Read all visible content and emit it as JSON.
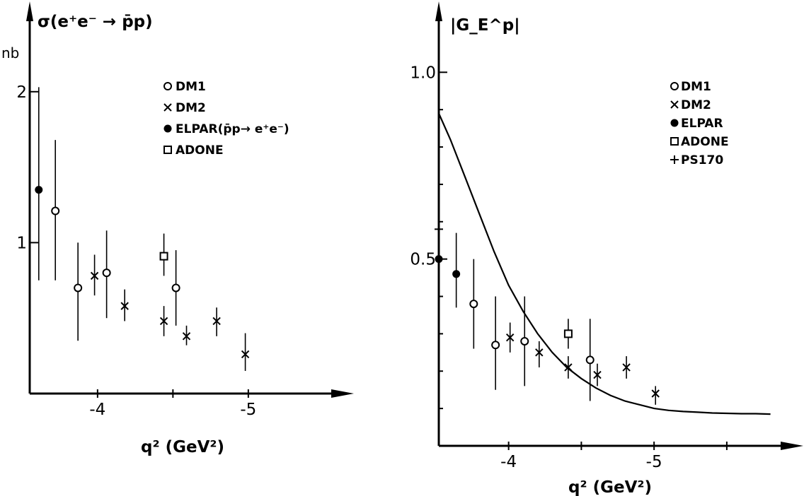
{
  "chart_data": [
    {
      "type": "scatter",
      "ylabel": "σ(e⁺e⁻ → p̄p)",
      "yunit": "nb",
      "xlabel": "q² (GeV²)",
      "xlim": [
        -3.55,
        -5.55
      ],
      "ylim": [
        0,
        2.5
      ],
      "xticks": [
        {
          "v": -4,
          "label": "-4"
        },
        {
          "v": -4.5,
          "label": ""
        },
        {
          "v": -5,
          "label": "-5"
        }
      ],
      "yticks": [
        {
          "v": 1,
          "label": "1"
        },
        {
          "v": 2,
          "label": "2"
        }
      ],
      "legend_position": "top-right",
      "series": [
        {
          "name": "DM1",
          "marker": "open-circle",
          "points": [
            {
              "x": -3.72,
              "y": 1.21,
              "lo": 0.75,
              "hi": 1.68
            },
            {
              "x": -3.87,
              "y": 0.7,
              "lo": 0.35,
              "hi": 1.0
            },
            {
              "x": -4.06,
              "y": 0.8,
              "lo": 0.5,
              "hi": 1.08
            },
            {
              "x": -4.52,
              "y": 0.7,
              "lo": 0.45,
              "hi": 0.95
            }
          ]
        },
        {
          "name": "DM2",
          "marker": "cross",
          "points": [
            {
              "x": -3.98,
              "y": 0.78,
              "lo": 0.65,
              "hi": 0.92
            },
            {
              "x": -4.18,
              "y": 0.58,
              "lo": 0.48,
              "hi": 0.69
            },
            {
              "x": -4.44,
              "y": 0.48,
              "lo": 0.38,
              "hi": 0.58
            },
            {
              "x": -4.59,
              "y": 0.38,
              "lo": 0.32,
              "hi": 0.45
            },
            {
              "x": -4.79,
              "y": 0.48,
              "lo": 0.38,
              "hi": 0.57
            },
            {
              "x": -4.98,
              "y": 0.26,
              "lo": 0.15,
              "hi": 0.4
            }
          ]
        },
        {
          "name": "ELPAR(p̄p→ e⁺e⁻)",
          "marker": "filled-circle",
          "points": [
            {
              "x": -3.61,
              "y": 1.35,
              "lo": 0.75,
              "hi": 2.03
            }
          ]
        },
        {
          "name": "ADONE",
          "marker": "open-square",
          "points": [
            {
              "x": -4.44,
              "y": 0.91,
              "lo": 0.78,
              "hi": 1.06
            }
          ]
        }
      ]
    },
    {
      "type": "scatter",
      "ylabel": "|G_E^p|",
      "xlabel": "q² (GeV²)",
      "xlim": [
        -3.52,
        -5.88
      ],
      "ylim": [
        0,
        1.15
      ],
      "xticks": [
        {
          "v": -4,
          "label": "-4"
        },
        {
          "v": -4.5,
          "label": ""
        },
        {
          "v": -5,
          "label": "-5"
        },
        {
          "v": -5.5,
          "label": ""
        }
      ],
      "yticks": [
        {
          "v": 0.1,
          "label": ""
        },
        {
          "v": 0.2,
          "label": ""
        },
        {
          "v": 0.3,
          "label": ""
        },
        {
          "v": 0.4,
          "label": ""
        },
        {
          "v": 0.5,
          "label": "0.5"
        },
        {
          "v": 0.6,
          "label": ""
        },
        {
          "v": 0.7,
          "label": ""
        },
        {
          "v": 0.8,
          "label": ""
        },
        {
          "v": 0.9,
          "label": ""
        },
        {
          "v": 1.0,
          "label": "1.0"
        }
      ],
      "legend_position": "top-right",
      "series": [
        {
          "name": "DM1",
          "marker": "open-circle",
          "points": [
            {
              "x": -3.76,
              "y": 0.38,
              "lo": 0.26,
              "hi": 0.5
            },
            {
              "x": -3.91,
              "y": 0.27,
              "lo": 0.15,
              "hi": 0.4
            },
            {
              "x": -4.11,
              "y": 0.28,
              "lo": 0.16,
              "hi": 0.4
            },
            {
              "x": -4.56,
              "y": 0.23,
              "lo": 0.12,
              "hi": 0.34
            }
          ]
        },
        {
          "name": "DM2",
          "marker": "cross",
          "points": [
            {
              "x": -4.01,
              "y": 0.29,
              "lo": 0.25,
              "hi": 0.33
            },
            {
              "x": -4.21,
              "y": 0.25,
              "lo": 0.21,
              "hi": 0.28
            },
            {
              "x": -4.41,
              "y": 0.21,
              "lo": 0.18,
              "hi": 0.24
            },
            {
              "x": -4.61,
              "y": 0.19,
              "lo": 0.16,
              "hi": 0.22
            },
            {
              "x": -4.81,
              "y": 0.21,
              "lo": 0.18,
              "hi": 0.24
            },
            {
              "x": -5.01,
              "y": 0.14,
              "lo": 0.11,
              "hi": 0.16
            }
          ]
        },
        {
          "name": "ELPAR",
          "marker": "filled-circle",
          "points": [
            {
              "x": -3.52,
              "y": 0.5,
              "lo": 0.4,
              "hi": 0.6
            },
            {
              "x": -3.64,
              "y": 0.46,
              "lo": 0.37,
              "hi": 0.57
            }
          ]
        },
        {
          "name": "ADONE",
          "marker": "open-square",
          "points": [
            {
              "x": -4.41,
              "y": 0.3,
              "lo": 0.26,
              "hi": 0.34
            }
          ]
        },
        {
          "name": "PS170",
          "marker": "plus",
          "points": [
            {
              "x": -3.52,
              "y": 0.58,
              "lo": 0.52,
              "hi": 0.64
            }
          ]
        }
      ],
      "curve": {
        "x": [
          -3.52,
          -3.6,
          -3.7,
          -3.8,
          -3.9,
          -4.0,
          -4.1,
          -4.2,
          -4.3,
          -4.4,
          -4.5,
          -4.6,
          -4.7,
          -4.8,
          -4.9,
          -5.0,
          -5.1,
          -5.2,
          -5.3,
          -5.4,
          -5.5,
          -5.6,
          -5.7,
          -5.8
        ],
        "y": [
          0.89,
          0.82,
          0.72,
          0.62,
          0.52,
          0.43,
          0.36,
          0.3,
          0.25,
          0.21,
          0.18,
          0.155,
          0.135,
          0.12,
          0.11,
          0.1,
          0.095,
          0.092,
          0.09,
          0.088,
          0.087,
          0.086,
          0.086,
          0.085
        ]
      }
    }
  ]
}
